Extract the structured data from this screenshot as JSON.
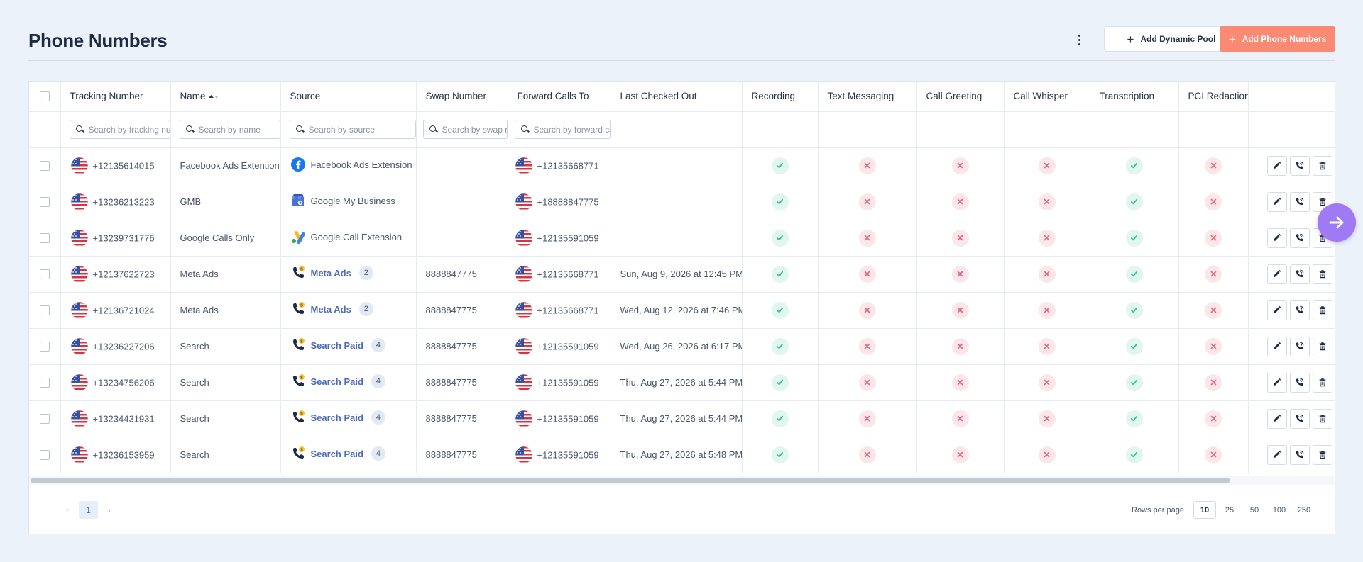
{
  "header": {
    "title": "Phone Numbers",
    "add_pool_label": "Add Dynamic Pool",
    "add_numbers_label": "Add Phone Numbers"
  },
  "columns": [
    "Tracking Number",
    "Name",
    "Source",
    "Swap Number",
    "Forward Calls To",
    "Last Checked Out",
    "Recording",
    "Text Messaging",
    "Call Greeting",
    "Call Whisper",
    "Transcription",
    "PCI Redaction"
  ],
  "filters": {
    "tracking": "Search by tracking number",
    "name": "Search by name",
    "source": "Search by source",
    "swap": "Search by swap number",
    "forward": "Search by forward calls to"
  },
  "rows": [
    {
      "tracking": "+12135614015",
      "name": "Facebook Ads Extention",
      "source": "Facebook Ads Extension",
      "source_icon": "facebook-icon",
      "source_link": false,
      "pool_count": "",
      "swap": "",
      "forward": "+12135668771",
      "last_checked": "",
      "recording": true,
      "text": false,
      "greeting": false,
      "whisper": false,
      "transcription": true,
      "pci": false
    },
    {
      "tracking": "+13236213223",
      "name": "GMB",
      "source": "Google My Business",
      "source_icon": "google-my-business-icon",
      "source_link": false,
      "pool_count": "",
      "swap": "",
      "forward": "+18888847775",
      "last_checked": "",
      "recording": true,
      "text": false,
      "greeting": false,
      "whisper": false,
      "transcription": true,
      "pci": false
    },
    {
      "tracking": "+13239731776",
      "name": "Google Calls Only",
      "source": "Google Call Extension",
      "source_icon": "google-ads-icon",
      "source_link": false,
      "pool_count": "",
      "swap": "",
      "forward": "+12135591059",
      "last_checked": "",
      "recording": true,
      "text": false,
      "greeting": false,
      "whisper": false,
      "transcription": true,
      "pci": false
    },
    {
      "tracking": "+12137622723",
      "name": "Meta Ads",
      "source": "Meta Ads",
      "source_icon": "dynamic-pool-phone-icon",
      "source_link": true,
      "pool_count": "2",
      "swap": "8888847775",
      "forward": "+12135668771",
      "last_checked": "Sun, Aug 9, 2026 at 12:45 PM",
      "recording": true,
      "text": false,
      "greeting": false,
      "whisper": false,
      "transcription": true,
      "pci": false
    },
    {
      "tracking": "+12136721024",
      "name": "Meta Ads",
      "source": "Meta Ads",
      "source_icon": "dynamic-pool-phone-icon",
      "source_link": true,
      "pool_count": "2",
      "swap": "8888847775",
      "forward": "+12135668771",
      "last_checked": "Wed, Aug 12, 2026 at 7:46 PM",
      "recording": true,
      "text": false,
      "greeting": false,
      "whisper": false,
      "transcription": true,
      "pci": false
    },
    {
      "tracking": "+13236227206",
      "name": "Search",
      "source": "Search Paid",
      "source_icon": "dynamic-pool-phone-icon",
      "source_link": true,
      "pool_count": "4",
      "swap": "8888847775",
      "forward": "+12135591059",
      "last_checked": "Wed, Aug 26, 2026 at 6:17 PM",
      "recording": true,
      "text": false,
      "greeting": false,
      "whisper": false,
      "transcription": true,
      "pci": false
    },
    {
      "tracking": "+13234756206",
      "name": "Search",
      "source": "Search Paid",
      "source_icon": "dynamic-pool-phone-icon",
      "source_link": true,
      "pool_count": "4",
      "swap": "8888847775",
      "forward": "+12135591059",
      "last_checked": "Thu, Aug 27, 2026 at 5:44 PM",
      "recording": true,
      "text": false,
      "greeting": false,
      "whisper": false,
      "transcription": true,
      "pci": false
    },
    {
      "tracking": "+13234431931",
      "name": "Search",
      "source": "Search Paid",
      "source_icon": "dynamic-pool-phone-icon",
      "source_link": true,
      "pool_count": "4",
      "swap": "8888847775",
      "forward": "+12135591059",
      "last_checked": "Thu, Aug 27, 2026 at 5:44 PM",
      "recording": true,
      "text": false,
      "greeting": false,
      "whisper": false,
      "transcription": true,
      "pci": false
    },
    {
      "tracking": "+13236153959",
      "name": "Search",
      "source": "Search Paid",
      "source_icon": "dynamic-pool-phone-icon",
      "source_link": true,
      "pool_count": "4",
      "swap": "8888847775",
      "forward": "+12135591059",
      "last_checked": "Thu, Aug 27, 2026 at 5:48 PM",
      "recording": true,
      "text": false,
      "greeting": false,
      "whisper": false,
      "transcription": true,
      "pci": false
    }
  ],
  "pagination": {
    "current_page": "1",
    "prev_glyph": "‹",
    "next_glyph": "›",
    "rows_per_page_label": "Rows per page",
    "rows_options": [
      "10",
      "25",
      "50",
      "100",
      "250"
    ],
    "selected": "10"
  },
  "colors": {
    "accent": "#fb8a74",
    "fab": "#a07af4",
    "link": "#4d6bb8",
    "success": "#3cc38e",
    "danger": "#e5687f"
  },
  "icons": {
    "sort": "sort-ascending-icon",
    "flag": "us-flag-icon",
    "on": "check-icon",
    "off": "x-icon",
    "actions": [
      "edit-icon",
      "call-settings-icon",
      "trash-icon"
    ],
    "fab": "arrow-right-icon"
  }
}
